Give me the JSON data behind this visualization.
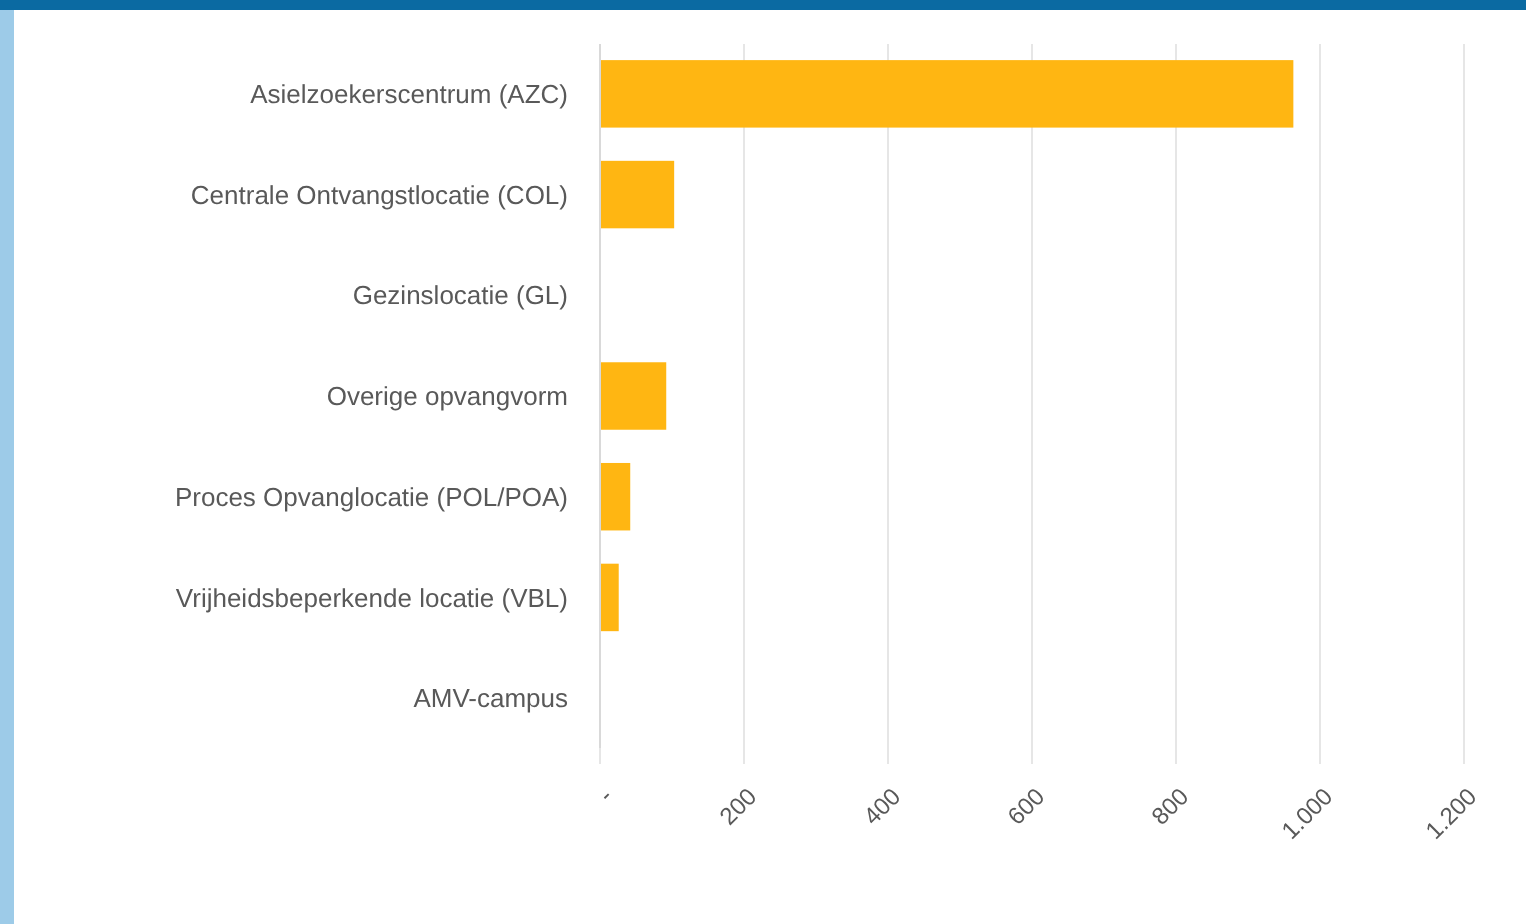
{
  "chart_data": {
    "type": "bar",
    "orientation": "horizontal",
    "categories": [
      "Asielzoekerscentrum (AZC)",
      "Centrale Ontvangstlocatie (COL)",
      "Gezinslocatie (GL)",
      "Overige opvangvorm",
      "Proces Opvanglocatie (POL/POA)",
      "Vrijheidsbeperkende locatie (VBL)",
      "AMV-campus"
    ],
    "values": [
      963,
      103,
      0,
      92,
      42,
      26,
      0
    ],
    "color": "#ffb612",
    "xlim": [
      0,
      1200
    ],
    "xticks": [
      {
        "value": 0,
        "label": "-"
      },
      200,
      400,
      600,
      {
        "value": 800,
        "label": "800"
      },
      {
        "value": 1000,
        "label": "1.000"
      },
      {
        "value": 1200,
        "label": "1.200"
      }
    ],
    "grid": "x"
  }
}
